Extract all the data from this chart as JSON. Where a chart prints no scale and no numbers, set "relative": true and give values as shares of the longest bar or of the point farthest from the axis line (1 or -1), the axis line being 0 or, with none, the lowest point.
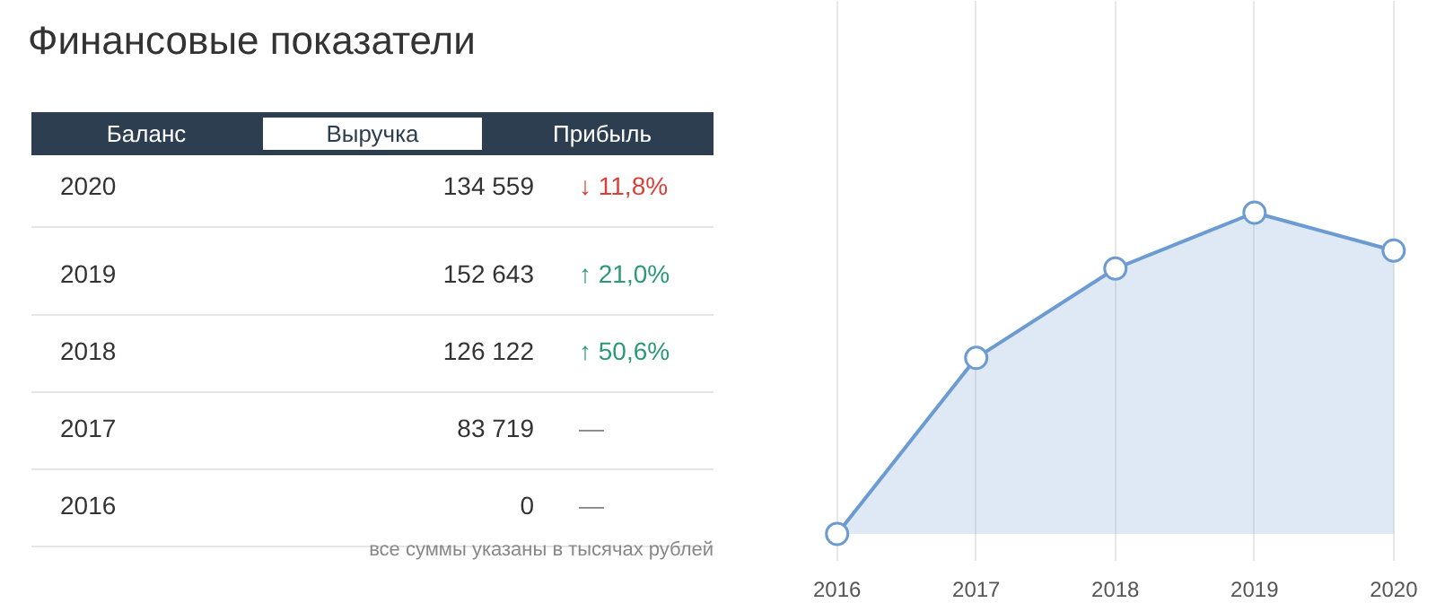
{
  "chart_data": {
    "type": "area",
    "title": "Финансовые показатели",
    "relative": true,
    "categories": [
      "2016",
      "2017",
      "2018",
      "2019",
      "2020"
    ],
    "values": [
      0,
      0.548,
      0.826,
      1,
      0.882
    ],
    "color": "#6b9bd1",
    "marker": "circle",
    "grid": "x",
    "annotations": [
      "Баланс",
      "Выручка",
      "Прибыль",
      "134 559",
      "152 643",
      "126 122",
      "83 719",
      "0",
      "↓ 11,8%",
      "↑ 21,0%",
      "↑ 50,6%",
      "—",
      "—",
      "все суммы указаны в тысячах рублей"
    ]
  }
}
